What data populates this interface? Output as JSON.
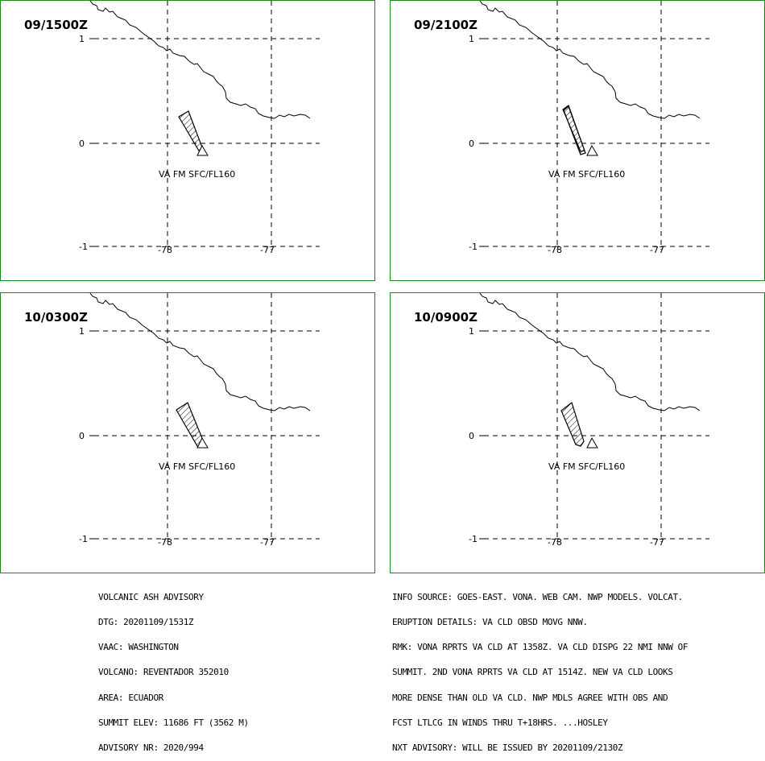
{
  "panels": [
    {
      "valid_time": "09/1500Z",
      "label": "VA FM SFC/FL160"
    },
    {
      "valid_time": "09/2100Z",
      "label": "VA FM SFC/FL160"
    },
    {
      "valid_time": "10/0300Z",
      "label": "VA FM SFC/FL160"
    },
    {
      "valid_time": "10/0900Z",
      "label": "VA FM SFC/FL160"
    }
  ],
  "axis": {
    "lat_labels": [
      "1",
      "0",
      "-1"
    ],
    "lon_labels": [
      "-78",
      "-77"
    ]
  },
  "advisory_left": [
    "VOLCANIC ASH ADVISORY",
    "DTG: 20201109/1531Z",
    "VAAC: WASHINGTON",
    "VOLCANO: REVENTADOR 352010",
    "AREA: ECUADOR",
    "SUMMIT ELEV: 11686 FT (3562 M)",
    "ADVISORY NR: 2020/994"
  ],
  "advisory_right": [
    "INFO SOURCE: GOES-EAST. VONA. WEB CAM. NWP MODELS. VOLCAT.",
    "ERUPTION DETAILS: VA CLD OBSD MOVG NNW.",
    "RMK: VONA RPRTS VA CLD AT 1358Z. VA CLD DISPG 22 NMI NNW OF",
    "SUMMIT. 2ND VONA RPRTS VA CLD AT 1514Z. NEW VA CLD LOOKS",
    "MORE DENSE THAN OLD VA CLD. NWP MDLS AGREE WITH OBS AND",
    "FCST LTLCG IN WINDS THRU T+18HRS. ...HOSLEY",
    "NXT ADVISORY: WILL BE ISSUED BY 20201109/2130Z"
  ],
  "colors": {
    "panel_border": "#1a8a1a",
    "line": "#000000"
  }
}
